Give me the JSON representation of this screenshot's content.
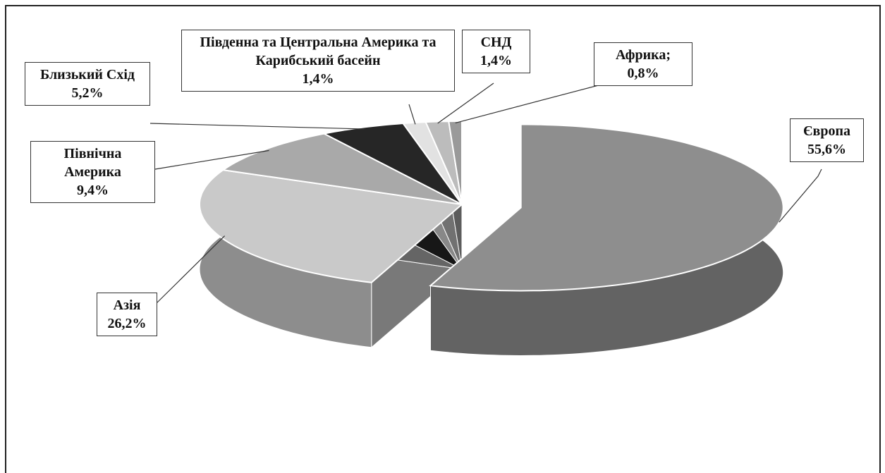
{
  "chart_data": {
    "type": "pie3d",
    "categories": [
      "Європа",
      "Азія",
      "Північна Америка",
      "Близький Схід",
      "Південна та Центральна Америка та Карибський басейн",
      "СНД",
      "Африка;"
    ],
    "values": [
      55.6,
      26.2,
      9.4,
      5.2,
      1.4,
      1.4,
      0.8
    ],
    "value_labels": [
      "55,6%",
      "26,2%",
      "9,4%",
      "5,2%",
      "1,4%",
      "1,4%",
      "0,8%"
    ],
    "colors": [
      "#8e8e8e",
      "#c9c9c9",
      "#a9a9a9",
      "#262626",
      "#e2e2e2",
      "#bcbcbc",
      "#9a9a9a"
    ]
  }
}
